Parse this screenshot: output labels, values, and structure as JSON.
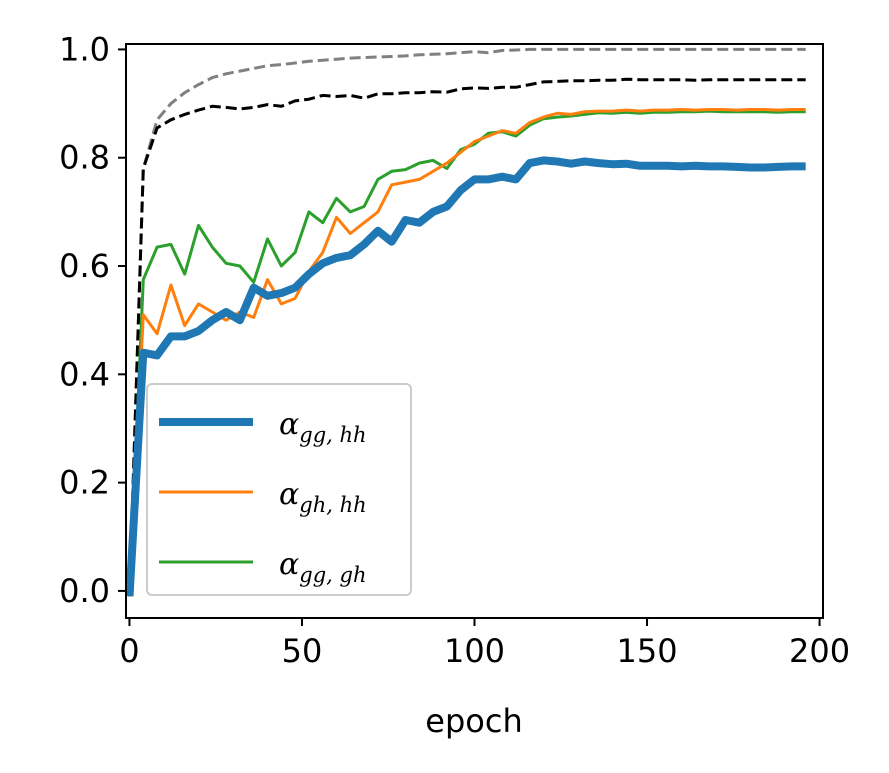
{
  "chart_data": {
    "type": "line",
    "title": "",
    "xlabel": "epoch",
    "ylabel": "",
    "xlim": [
      -1,
      201
    ],
    "ylim": [
      -0.05,
      1.01
    ],
    "grid": false,
    "legend_position": "lower-left",
    "x_ticks": [
      0,
      50,
      100,
      150,
      200
    ],
    "x_tick_labels": [
      "0",
      "50",
      "100",
      "150",
      "200"
    ],
    "y_ticks": [
      0.0,
      0.2,
      0.4,
      0.6,
      0.8,
      1.0
    ],
    "y_tick_labels": [
      "0.0",
      "0.2",
      "0.4",
      "0.6",
      "0.8",
      "1.0"
    ],
    "series": [
      {
        "name": "α_{gg,hh}",
        "legend_symbol": "α",
        "legend_subscript": "gg, hh",
        "color": "#1f77b4",
        "style": "solid",
        "width": "thick",
        "in_legend": true,
        "x": [
          0,
          4,
          8,
          12,
          16,
          20,
          24,
          28,
          32,
          36,
          40,
          44,
          48,
          52,
          56,
          60,
          64,
          68,
          72,
          76,
          80,
          84,
          88,
          92,
          96,
          100,
          104,
          108,
          112,
          116,
          120,
          124,
          128,
          132,
          136,
          140,
          144,
          148,
          152,
          156,
          160,
          164,
          168,
          172,
          176,
          180,
          184,
          188,
          192,
          196
        ],
        "values": [
          -0.01,
          0.44,
          0.435,
          0.47,
          0.47,
          0.48,
          0.5,
          0.515,
          0.5,
          0.56,
          0.545,
          0.55,
          0.56,
          0.585,
          0.605,
          0.615,
          0.62,
          0.64,
          0.665,
          0.645,
          0.685,
          0.68,
          0.7,
          0.71,
          0.74,
          0.76,
          0.76,
          0.765,
          0.76,
          0.79,
          0.795,
          0.793,
          0.789,
          0.793,
          0.79,
          0.788,
          0.789,
          0.785,
          0.785,
          0.785,
          0.784,
          0.785,
          0.784,
          0.784,
          0.783,
          0.782,
          0.782,
          0.783,
          0.784,
          0.784
        ]
      },
      {
        "name": "α_{gh,hh}",
        "legend_symbol": "α",
        "legend_subscript": "gh, hh",
        "color": "#ff7f0e",
        "style": "solid",
        "width": "normal",
        "in_legend": true,
        "x": [
          0,
          4,
          8,
          12,
          16,
          20,
          24,
          28,
          32,
          36,
          40,
          44,
          48,
          52,
          56,
          60,
          64,
          68,
          72,
          76,
          80,
          84,
          88,
          92,
          96,
          100,
          104,
          108,
          112,
          116,
          120,
          124,
          128,
          132,
          136,
          140,
          144,
          148,
          152,
          156,
          160,
          164,
          168,
          172,
          176,
          180,
          184,
          188,
          192,
          196
        ],
        "values": [
          -0.01,
          0.51,
          0.475,
          0.565,
          0.49,
          0.53,
          0.515,
          0.5,
          0.515,
          0.505,
          0.575,
          0.53,
          0.54,
          0.59,
          0.625,
          0.69,
          0.66,
          0.68,
          0.7,
          0.75,
          0.755,
          0.76,
          0.775,
          0.79,
          0.81,
          0.83,
          0.84,
          0.85,
          0.845,
          0.865,
          0.875,
          0.882,
          0.88,
          0.885,
          0.886,
          0.886,
          0.888,
          0.886,
          0.888,
          0.888,
          0.889,
          0.888,
          0.889,
          0.889,
          0.888,
          0.889,
          0.889,
          0.888,
          0.889,
          0.889
        ]
      },
      {
        "name": "α_{gg,gh}",
        "legend_symbol": "α",
        "legend_subscript": "gg, gh",
        "color": "#2ca02c",
        "style": "solid",
        "width": "normal",
        "in_legend": true,
        "x": [
          0,
          4,
          8,
          12,
          16,
          20,
          24,
          28,
          32,
          36,
          40,
          44,
          48,
          52,
          56,
          60,
          64,
          68,
          72,
          76,
          80,
          84,
          88,
          92,
          96,
          100,
          104,
          108,
          112,
          116,
          120,
          124,
          128,
          132,
          136,
          140,
          144,
          148,
          152,
          156,
          160,
          164,
          168,
          172,
          176,
          180,
          184,
          188,
          192,
          196
        ],
        "values": [
          -0.01,
          0.575,
          0.635,
          0.64,
          0.585,
          0.675,
          0.635,
          0.605,
          0.6,
          0.57,
          0.65,
          0.6,
          0.625,
          0.7,
          0.68,
          0.725,
          0.7,
          0.71,
          0.76,
          0.775,
          0.778,
          0.79,
          0.795,
          0.78,
          0.815,
          0.825,
          0.845,
          0.848,
          0.84,
          0.86,
          0.872,
          0.875,
          0.877,
          0.88,
          0.883,
          0.882,
          0.884,
          0.882,
          0.884,
          0.884,
          0.885,
          0.885,
          0.886,
          0.885,
          0.885,
          0.885,
          0.885,
          0.884,
          0.885,
          0.885
        ]
      },
      {
        "name": "reference-grey",
        "color": "#808080",
        "style": "dashed",
        "width": "normal",
        "in_legend": false,
        "x": [
          0,
          4,
          8,
          12,
          16,
          20,
          24,
          28,
          32,
          36,
          40,
          44,
          48,
          52,
          56,
          60,
          64,
          68,
          72,
          76,
          80,
          84,
          88,
          92,
          96,
          100,
          104,
          108,
          112,
          116,
          120,
          124,
          128,
          132,
          136,
          140,
          144,
          148,
          152,
          156,
          160,
          164,
          168,
          172,
          176,
          180,
          184,
          188,
          192,
          196
        ],
        "values": [
          -0.01,
          0.78,
          0.87,
          0.9,
          0.92,
          0.935,
          0.948,
          0.955,
          0.96,
          0.965,
          0.97,
          0.972,
          0.975,
          0.978,
          0.98,
          0.982,
          0.984,
          0.985,
          0.986,
          0.987,
          0.988,
          0.99,
          0.991,
          0.992,
          0.994,
          0.996,
          0.994,
          0.998,
          0.999,
          1.0,
          1.0,
          1.0,
          1.0,
          1.0,
          1.0,
          1.0,
          1.0,
          1.0,
          1.0,
          1.0,
          1.0,
          1.0,
          1.0,
          1.0,
          1.0,
          1.0,
          1.0,
          1.0,
          1.0,
          1.0
        ]
      },
      {
        "name": "reference-black",
        "color": "#000000",
        "style": "dashed",
        "width": "normal",
        "in_legend": false,
        "x": [
          0,
          4,
          8,
          12,
          16,
          20,
          24,
          28,
          32,
          36,
          40,
          44,
          48,
          52,
          56,
          60,
          64,
          68,
          72,
          76,
          80,
          84,
          88,
          92,
          96,
          100,
          104,
          108,
          112,
          116,
          120,
          124,
          128,
          132,
          136,
          140,
          144,
          148,
          152,
          156,
          160,
          164,
          168,
          172,
          176,
          180,
          184,
          188,
          192,
          196
        ],
        "values": [
          -0.01,
          0.78,
          0.855,
          0.87,
          0.88,
          0.888,
          0.895,
          0.893,
          0.89,
          0.893,
          0.898,
          0.895,
          0.905,
          0.908,
          0.915,
          0.913,
          0.915,
          0.91,
          0.918,
          0.918,
          0.92,
          0.92,
          0.922,
          0.921,
          0.927,
          0.929,
          0.928,
          0.93,
          0.93,
          0.935,
          0.94,
          0.941,
          0.942,
          0.942,
          0.943,
          0.943,
          0.945,
          0.944,
          0.944,
          0.944,
          0.944,
          0.943,
          0.944,
          0.944,
          0.944,
          0.944,
          0.944,
          0.944,
          0.944,
          0.944
        ]
      }
    ]
  }
}
